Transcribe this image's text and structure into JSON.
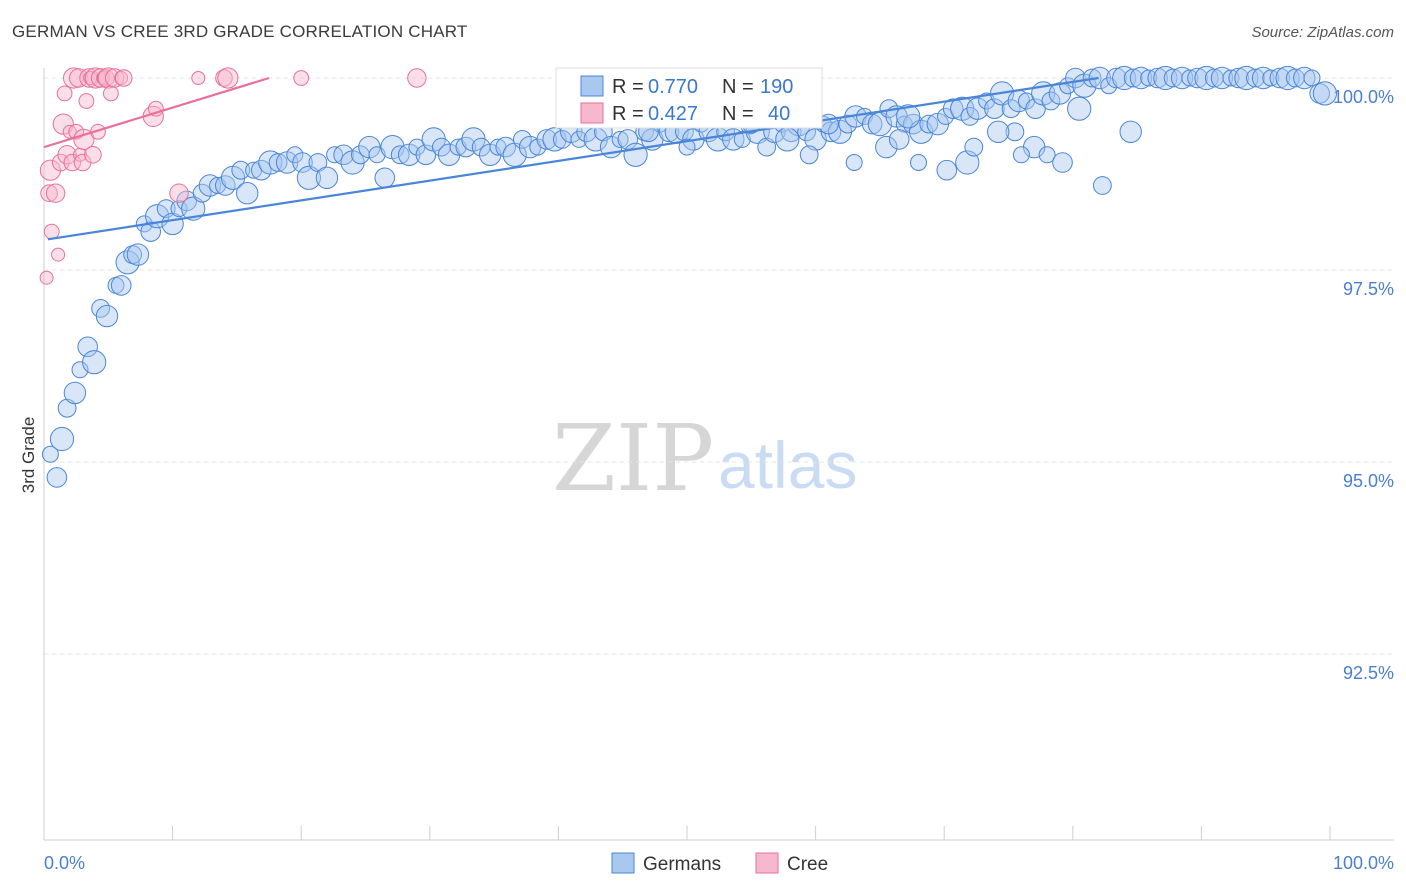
{
  "title": "GERMAN VS CREE 3RD GRADE CORRELATION CHART",
  "source": "Source: ZipAtlas.com",
  "watermark": {
    "part1": "ZIP",
    "part2": "atlas"
  },
  "colors": {
    "blue": "#4a86d8",
    "blue_fill": "#a9c8f0",
    "pink": "#e8709a",
    "pink_fill": "#f6b8cc",
    "tick": "#4a7fd0"
  },
  "chart_data": {
    "type": "scatter",
    "title": "GERMAN VS CREE 3RD GRADE CORRELATION CHART",
    "xlabel": "",
    "ylabel": "3rd Grade",
    "xlim": [
      0,
      100
    ],
    "ylim": [
      90.0,
      100.4
    ],
    "x_tick_labels": [
      "0.0%",
      "100.0%"
    ],
    "y_ticks": [
      92.5,
      95.0,
      97.5,
      100.0
    ],
    "y_tick_labels": [
      "92.5%",
      "95.0%",
      "97.5%",
      "100.0%"
    ],
    "legend": {
      "entries": [
        {
          "r_label": "R =",
          "r_value": "0.770",
          "n_label": "N =",
          "n_value": "190"
        },
        {
          "r_label": "R =",
          "r_value": "0.427",
          "n_label": "N =",
          "n_value": "40"
        }
      ]
    },
    "series": [
      {
        "name": "Germans",
        "color": "#4a86d8",
        "r": 0.77,
        "n": 190,
        "trend": [
          [
            0.3,
            97.9
          ],
          [
            82,
            100.0
          ]
        ],
        "points": [
          [
            0.5,
            95.1
          ],
          [
            1.0,
            94.8
          ],
          [
            1.4,
            95.3
          ],
          [
            1.8,
            95.7
          ],
          [
            2.4,
            95.9
          ],
          [
            2.8,
            96.2
          ],
          [
            3.4,
            96.5
          ],
          [
            3.9,
            96.3
          ],
          [
            4.4,
            97.0
          ],
          [
            4.9,
            96.9
          ],
          [
            5.6,
            97.3
          ],
          [
            6.0,
            97.3
          ],
          [
            6.5,
            97.6
          ],
          [
            6.9,
            97.7
          ],
          [
            7.3,
            97.7
          ],
          [
            7.8,
            98.1
          ],
          [
            8.3,
            98.0
          ],
          [
            8.8,
            98.2
          ],
          [
            9.5,
            98.3
          ],
          [
            10.0,
            98.1
          ],
          [
            10.5,
            98.3
          ],
          [
            11.1,
            98.4
          ],
          [
            11.6,
            98.3
          ],
          [
            12.3,
            98.5
          ],
          [
            12.9,
            98.6
          ],
          [
            13.5,
            98.6
          ],
          [
            14.1,
            98.6
          ],
          [
            14.7,
            98.7
          ],
          [
            15.3,
            98.8
          ],
          [
            15.8,
            98.5
          ],
          [
            16.3,
            98.8
          ],
          [
            16.9,
            98.8
          ],
          [
            17.6,
            98.9
          ],
          [
            18.2,
            98.9
          ],
          [
            18.9,
            98.9
          ],
          [
            19.5,
            99.0
          ],
          [
            20.1,
            98.9
          ],
          [
            20.6,
            98.7
          ],
          [
            21.3,
            98.9
          ],
          [
            22.0,
            98.7
          ],
          [
            22.6,
            99.0
          ],
          [
            23.3,
            99.0
          ],
          [
            24.0,
            98.9
          ],
          [
            24.6,
            99.0
          ],
          [
            25.3,
            99.1
          ],
          [
            25.9,
            99.0
          ],
          [
            26.5,
            98.7
          ],
          [
            27.1,
            99.1
          ],
          [
            27.7,
            99.0
          ],
          [
            28.4,
            99.0
          ],
          [
            29.0,
            99.1
          ],
          [
            29.7,
            99.0
          ],
          [
            30.3,
            99.2
          ],
          [
            30.9,
            99.1
          ],
          [
            31.5,
            99.0
          ],
          [
            32.2,
            99.1
          ],
          [
            32.8,
            99.1
          ],
          [
            33.4,
            99.2
          ],
          [
            34.0,
            99.1
          ],
          [
            34.7,
            99.0
          ],
          [
            35.3,
            99.1
          ],
          [
            35.9,
            99.1
          ],
          [
            36.6,
            99.0
          ],
          [
            37.2,
            99.2
          ],
          [
            37.8,
            99.1
          ],
          [
            38.4,
            99.1
          ],
          [
            39.1,
            99.2
          ],
          [
            39.7,
            99.2
          ],
          [
            40.3,
            99.2
          ],
          [
            41.0,
            99.3
          ],
          [
            41.6,
            99.2
          ],
          [
            42.2,
            99.3
          ],
          [
            42.9,
            99.2
          ],
          [
            43.5,
            99.3
          ],
          [
            44.1,
            99.1
          ],
          [
            44.8,
            99.2
          ],
          [
            45.4,
            99.2
          ],
          [
            46.0,
            99.0
          ],
          [
            46.7,
            99.3
          ],
          [
            47.3,
            99.2
          ],
          [
            47.9,
            99.4
          ],
          [
            48.6,
            99.3
          ],
          [
            49.2,
            99.3
          ],
          [
            49.8,
            99.3
          ],
          [
            50.5,
            99.2
          ],
          [
            51.1,
            99.4
          ],
          [
            51.7,
            99.3
          ],
          [
            52.4,
            99.2
          ],
          [
            53.0,
            99.3
          ],
          [
            53.6,
            99.2
          ],
          [
            54.3,
            99.2
          ],
          [
            54.9,
            99.4
          ],
          [
            55.5,
            99.3
          ],
          [
            56.2,
            99.1
          ],
          [
            56.8,
            99.3
          ],
          [
            57.4,
            99.4
          ],
          [
            58.1,
            99.3
          ],
          [
            58.7,
            99.4
          ],
          [
            59.3,
            99.3
          ],
          [
            60.0,
            99.2
          ],
          [
            60.6,
            99.4
          ],
          [
            61.2,
            99.3
          ],
          [
            61.9,
            99.3
          ],
          [
            62.5,
            99.4
          ],
          [
            63.1,
            99.5
          ],
          [
            63.8,
            99.5
          ],
          [
            64.4,
            99.4
          ],
          [
            65.0,
            99.4
          ],
          [
            65.7,
            99.6
          ],
          [
            66.3,
            99.5
          ],
          [
            66.9,
            99.4
          ],
          [
            67.6,
            99.4
          ],
          [
            68.2,
            99.3
          ],
          [
            68.8,
            99.4
          ],
          [
            69.5,
            99.4
          ],
          [
            70.1,
            99.5
          ],
          [
            70.7,
            99.6
          ],
          [
            71.4,
            99.6
          ],
          [
            72.0,
            99.5
          ],
          [
            72.6,
            99.6
          ],
          [
            73.3,
            99.7
          ],
          [
            73.9,
            99.6
          ],
          [
            74.5,
            99.8
          ],
          [
            75.2,
            99.6
          ],
          [
            75.8,
            99.7
          ],
          [
            76.4,
            99.7
          ],
          [
            77.1,
            99.6
          ],
          [
            77.7,
            99.8
          ],
          [
            78.3,
            99.7
          ],
          [
            79.0,
            99.8
          ],
          [
            79.6,
            99.9
          ],
          [
            80.2,
            100.0
          ],
          [
            80.9,
            99.9
          ],
          [
            81.5,
            100.0
          ],
          [
            82.1,
            100.0
          ],
          [
            82.8,
            99.9
          ],
          [
            83.4,
            100.0
          ],
          [
            84.0,
            100.0
          ],
          [
            84.7,
            100.0
          ],
          [
            85.3,
            100.0
          ],
          [
            85.9,
            100.0
          ],
          [
            86.6,
            100.0
          ],
          [
            87.2,
            100.0
          ],
          [
            87.8,
            100.0
          ],
          [
            88.5,
            100.0
          ],
          [
            89.1,
            100.0
          ],
          [
            89.7,
            100.0
          ],
          [
            90.4,
            100.0
          ],
          [
            91.0,
            100.0
          ],
          [
            91.6,
            100.0
          ],
          [
            92.3,
            100.0
          ],
          [
            92.9,
            100.0
          ],
          [
            93.5,
            100.0
          ],
          [
            94.2,
            100.0
          ],
          [
            94.8,
            100.0
          ],
          [
            95.4,
            100.0
          ],
          [
            96.1,
            100.0
          ],
          [
            96.7,
            100.0
          ],
          [
            97.3,
            100.0
          ],
          [
            98.0,
            100.0
          ],
          [
            98.6,
            100.0
          ],
          [
            99.2,
            99.8
          ],
          [
            99.6,
            99.8
          ],
          [
            59.5,
            99.0
          ],
          [
            65.5,
            99.1
          ],
          [
            68.0,
            98.9
          ],
          [
            70.2,
            98.8
          ],
          [
            71.8,
            98.9
          ],
          [
            75.5,
            99.3
          ],
          [
            77.0,
            99.1
          ],
          [
            78.0,
            99.0
          ],
          [
            79.2,
            98.9
          ],
          [
            80.5,
            99.6
          ],
          [
            82.3,
            98.6
          ],
          [
            84.5,
            99.3
          ],
          [
            63.0,
            98.9
          ],
          [
            66.5,
            99.2
          ],
          [
            67.2,
            99.5
          ],
          [
            72.3,
            99.1
          ],
          [
            74.2,
            99.3
          ],
          [
            76.0,
            99.0
          ],
          [
            61.0,
            99.4
          ],
          [
            57.8,
            99.2
          ],
          [
            55.0,
            99.4
          ],
          [
            52.6,
            99.5
          ],
          [
            50.0,
            99.1
          ],
          [
            47.0,
            99.3
          ]
        ]
      },
      {
        "name": "Cree",
        "color": "#e8709a",
        "r": 0.427,
        "n": 40,
        "trend": [
          [
            0.0,
            99.1
          ],
          [
            17.5,
            100.0
          ]
        ],
        "points": [
          [
            0.2,
            97.4
          ],
          [
            0.4,
            98.5
          ],
          [
            0.5,
            98.8
          ],
          [
            0.6,
            98.0
          ],
          [
            0.9,
            98.5
          ],
          [
            1.1,
            97.7
          ],
          [
            1.3,
            98.9
          ],
          [
            1.5,
            99.4
          ],
          [
            1.6,
            99.8
          ],
          [
            1.8,
            99.0
          ],
          [
            2.0,
            99.3
          ],
          [
            2.2,
            98.9
          ],
          [
            2.3,
            100.0
          ],
          [
            2.5,
            99.3
          ],
          [
            2.7,
            100.0
          ],
          [
            2.8,
            99.0
          ],
          [
            3.0,
            98.9
          ],
          [
            3.1,
            99.2
          ],
          [
            3.3,
            99.7
          ],
          [
            3.5,
            100.0
          ],
          [
            3.6,
            100.0
          ],
          [
            3.8,
            99.0
          ],
          [
            4.0,
            100.0
          ],
          [
            4.2,
            99.3
          ],
          [
            4.4,
            100.0
          ],
          [
            4.6,
            100.0
          ],
          [
            4.8,
            100.0
          ],
          [
            5.0,
            100.0
          ],
          [
            5.2,
            99.8
          ],
          [
            5.5,
            100.0
          ],
          [
            6.0,
            100.0
          ],
          [
            6.2,
            100.0
          ],
          [
            8.5,
            99.5
          ],
          [
            8.7,
            99.6
          ],
          [
            10.5,
            98.5
          ],
          [
            12.0,
            100.0
          ],
          [
            14.0,
            100.0
          ],
          [
            14.3,
            100.0
          ],
          [
            20.0,
            100.0
          ],
          [
            29.0,
            100.0
          ]
        ]
      }
    ]
  },
  "bottom_legend": {
    "items": [
      "Germans",
      "Cree"
    ]
  }
}
